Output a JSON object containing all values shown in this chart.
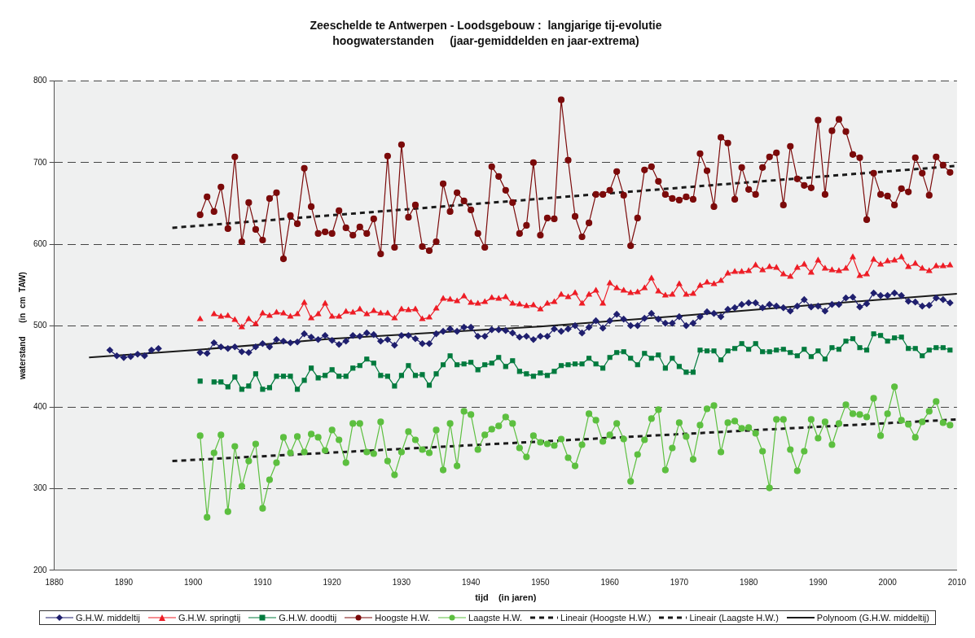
{
  "chart_data": {
    "type": "line",
    "title": "Zeeschelde te Antwerpen - Loodsgebouw :  langjarige tij-evolutie",
    "subtitle": "hoogwaterstanden     (jaar-gemiddelden en jaar-extrema)",
    "xlabel": "tijd    (in jaren)",
    "ylabel": "waterstand      (in  cm  TAW)",
    "xlim": [
      1880,
      2010
    ],
    "xticks": [
      1880,
      1890,
      1900,
      1910,
      1920,
      1930,
      1940,
      1950,
      1960,
      1970,
      1980,
      1990,
      2000,
      2010
    ],
    "ylim": [
      200,
      800
    ],
    "yticks": [
      200,
      300,
      400,
      500,
      600,
      700,
      800
    ],
    "grid": "y",
    "legend": "bottom",
    "x": [
      1888,
      1889,
      1890,
      1891,
      1892,
      1893,
      1894,
      1895,
      1896,
      1897,
      1898,
      1899,
      1900,
      1901,
      1902,
      1903,
      1904,
      1905,
      1906,
      1907,
      1908,
      1909,
      1910,
      1911,
      1912,
      1913,
      1914,
      1915,
      1916,
      1917,
      1918,
      1919,
      1920,
      1921,
      1922,
      1923,
      1924,
      1925,
      1926,
      1927,
      1928,
      1929,
      1930,
      1931,
      1932,
      1933,
      1934,
      1935,
      1936,
      1937,
      1938,
      1939,
      1940,
      1941,
      1942,
      1943,
      1944,
      1945,
      1946,
      1947,
      1948,
      1949,
      1950,
      1951,
      1952,
      1953,
      1954,
      1955,
      1956,
      1957,
      1958,
      1959,
      1960,
      1961,
      1962,
      1963,
      1964,
      1965,
      1966,
      1967,
      1968,
      1969,
      1970,
      1971,
      1972,
      1973,
      1974,
      1975,
      1976,
      1977,
      1978,
      1979,
      1980,
      1981,
      1982,
      1983,
      1984,
      1985,
      1986,
      1987,
      1988,
      1989,
      1990,
      1991,
      1992,
      1993,
      1994,
      1995,
      1996,
      1997,
      1998,
      1999,
      2000,
      2001,
      2002,
      2003,
      2004,
      2005,
      2006,
      2007,
      2008,
      2009
    ],
    "series": [
      {
        "name": "G.H.W. middeltij",
        "color": "#1f1f6e",
        "marker": "diamond",
        "line_style": "solid",
        "values": [
          470,
          463,
          461,
          462,
          465,
          463,
          470,
          472,
          null,
          null,
          null,
          null,
          null,
          467,
          466,
          479,
          474,
          472,
          474,
          468,
          467,
          474,
          478,
          474,
          483,
          481,
          479,
          480,
          490,
          486,
          483,
          488,
          482,
          477,
          481,
          488,
          487,
          491,
          489,
          481,
          483,
          476,
          488,
          488,
          484,
          478,
          478,
          490,
          493,
          496,
          493,
          498,
          498,
          487,
          487,
          495,
          495,
          494,
          491,
          486,
          487,
          483,
          487,
          487,
          496,
          493,
          496,
          500,
          491,
          498,
          506,
          497,
          506,
          514,
          508,
          500,
          500,
          509,
          515,
          508,
          503,
          503,
          511,
          500,
          503,
          511,
          517,
          515,
          511,
          520,
          522,
          526,
          528,
          528,
          522,
          526,
          524,
          522,
          518,
          524,
          532,
          523,
          524,
          518,
          526,
          526,
          534,
          535,
          523,
          527,
          540,
          537,
          537,
          540,
          537,
          530,
          529,
          524,
          525,
          534,
          532,
          528
        ]
      },
      {
        "name": "G.H.W. springtij",
        "color": "#ee1c25",
        "marker": "triangle",
        "line_style": "solid",
        "values": [
          null,
          null,
          null,
          null,
          null,
          null,
          null,
          null,
          null,
          null,
          null,
          null,
          null,
          508,
          null,
          514,
          511,
          512,
          507,
          498,
          508,
          502,
          515,
          512,
          516,
          515,
          511,
          514,
          528,
          509,
          514,
          527,
          511,
          511,
          517,
          516,
          520,
          514,
          518,
          515,
          515,
          509,
          520,
          519,
          520,
          508,
          510,
          521,
          533,
          532,
          530,
          536,
          528,
          527,
          529,
          534,
          533,
          535,
          527,
          526,
          524,
          525,
          520,
          527,
          529,
          538,
          535,
          540,
          527,
          538,
          543,
          527,
          552,
          546,
          543,
          540,
          541,
          546,
          558,
          542,
          537,
          538,
          551,
          538,
          539,
          549,
          553,
          551,
          555,
          564,
          566,
          566,
          567,
          574,
          568,
          572,
          571,
          563,
          560,
          571,
          575,
          565,
          580,
          570,
          568,
          567,
          570,
          584,
          561,
          563,
          581,
          575,
          579,
          580,
          584,
          572,
          576,
          570,
          567,
          573,
          573,
          574
        ]
      },
      {
        "name": "G.H.W. doodtij",
        "color": "#007a3d",
        "marker": "square",
        "line_style": "solid",
        "values": [
          null,
          null,
          null,
          null,
          null,
          null,
          null,
          null,
          null,
          null,
          null,
          null,
          null,
          432,
          null,
          431,
          431,
          425,
          437,
          422,
          426,
          441,
          422,
          424,
          438,
          438,
          438,
          422,
          433,
          448,
          436,
          439,
          446,
          438,
          438,
          448,
          451,
          459,
          454,
          439,
          438,
          426,
          439,
          451,
          439,
          440,
          427,
          441,
          452,
          463,
          452,
          453,
          455,
          446,
          452,
          454,
          461,
          450,
          457,
          444,
          441,
          438,
          442,
          439,
          444,
          451,
          452,
          453,
          453,
          460,
          453,
          448,
          461,
          467,
          468,
          460,
          452,
          466,
          460,
          464,
          448,
          460,
          450,
          443,
          443,
          470,
          469,
          469,
          458,
          469,
          472,
          478,
          471,
          478,
          468,
          468,
          470,
          471,
          467,
          463,
          471,
          462,
          469,
          459,
          473,
          471,
          481,
          484,
          473,
          470,
          490,
          488,
          481,
          485,
          486,
          472,
          472,
          463,
          470,
          473,
          473,
          470
        ]
      },
      {
        "name": "Hoogste H.W.",
        "color": "#7b0a0a",
        "marker": "circle",
        "line_style": "solid",
        "values": [
          null,
          null,
          null,
          null,
          null,
          null,
          null,
          null,
          null,
          null,
          null,
          null,
          null,
          636,
          658,
          640,
          670,
          619,
          707,
          603,
          651,
          618,
          605,
          656,
          663,
          582,
          635,
          625,
          693,
          646,
          613,
          615,
          613,
          641,
          620,
          611,
          621,
          613,
          631,
          588,
          708,
          596,
          722,
          633,
          648,
          597,
          592,
          603,
          674,
          640,
          663,
          653,
          642,
          613,
          596,
          695,
          683,
          666,
          651,
          613,
          623,
          700,
          611,
          632,
          631,
          777,
          703,
          634,
          609,
          626,
          661,
          661,
          666,
          689,
          660,
          598,
          632,
          691,
          695,
          677,
          661,
          656,
          654,
          658,
          655,
          711,
          690,
          646,
          731,
          724,
          655,
          694,
          667,
          661,
          694,
          707,
          712,
          648,
          720,
          680,
          672,
          669,
          752,
          661,
          739,
          753,
          738,
          710,
          706,
          630,
          687,
          661,
          659,
          648,
          668,
          664,
          706,
          687,
          660,
          707,
          697,
          688
        ]
      },
      {
        "name": "Laagste H.W.",
        "color": "#5cbf3f",
        "marker": "circle",
        "line_style": "solid",
        "values": [
          null,
          null,
          null,
          null,
          null,
          null,
          null,
          null,
          null,
          null,
          null,
          null,
          null,
          365,
          265,
          344,
          366,
          272,
          352,
          303,
          334,
          355,
          276,
          311,
          332,
          363,
          344,
          364,
          345,
          367,
          363,
          347,
          372,
          360,
          332,
          380,
          380,
          345,
          343,
          382,
          334,
          317,
          345,
          370,
          360,
          348,
          344,
          372,
          323,
          380,
          328,
          395,
          391,
          348,
          366,
          373,
          377,
          388,
          380,
          350,
          339,
          365,
          357,
          355,
          353,
          361,
          338,
          328,
          354,
          392,
          384,
          358,
          366,
          380,
          361,
          309,
          342,
          360,
          386,
          397,
          323,
          350,
          381,
          364,
          336,
          378,
          398,
          402,
          345,
          381,
          383,
          374,
          375,
          368,
          346,
          301,
          385,
          385,
          348,
          322,
          346,
          385,
          362,
          382,
          354,
          380,
          403,
          392,
          391,
          388,
          411,
          365,
          392,
          425,
          384,
          379,
          363,
          382,
          395,
          407,
          381,
          378
        ]
      },
      {
        "name": "Lineair (Hoogste H.W.)",
        "color": "#1a1a1a",
        "marker": "none",
        "line_style": "dashed",
        "x": [
          1897,
          2010
        ],
        "values": [
          620,
          696
        ]
      },
      {
        "name": "Lineair (Laagste H.W.)",
        "color": "#1a1a1a",
        "marker": "none",
        "line_style": "dashed",
        "x": [
          1897,
          2010
        ],
        "values": [
          334,
          385
        ]
      },
      {
        "name": "Polynoom (G.H.W. middeltij)",
        "color": "#1a1a1a",
        "marker": "none",
        "line_style": "solid",
        "x": [
          1885,
          1900,
          1920,
          1950,
          1970,
          1990,
          2010
        ],
        "values": [
          461,
          470,
          484,
          499,
          512,
          526,
          539
        ]
      }
    ]
  }
}
